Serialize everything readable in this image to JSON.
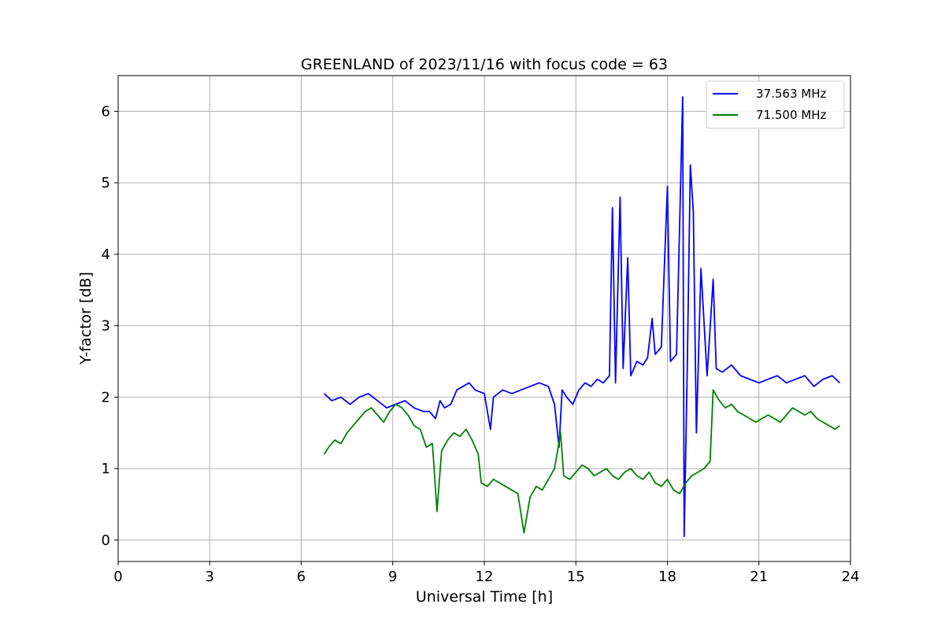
{
  "chart_data": {
    "type": "line",
    "title": "GREENLAND of 2023/11/16 with focus code = 63",
    "xlabel": "Universal Time [h]",
    "ylabel": "Y-factor [dB]",
    "xlim": [
      0,
      24
    ],
    "ylim": [
      -0.3,
      6.5
    ],
    "xticks": [
      0,
      3,
      6,
      9,
      12,
      15,
      18,
      21,
      24
    ],
    "yticks": [
      0,
      1,
      2,
      3,
      4,
      5,
      6
    ],
    "grid": true,
    "legend_position": "top-right",
    "series": [
      {
        "name": "37.563 MHz",
        "color": "#0000ff",
        "points": [
          [
            6.75,
            2.05
          ],
          [
            7.0,
            1.95
          ],
          [
            7.3,
            2.0
          ],
          [
            7.6,
            1.9
          ],
          [
            7.9,
            2.0
          ],
          [
            8.2,
            2.05
          ],
          [
            8.5,
            1.95
          ],
          [
            8.8,
            1.85
          ],
          [
            9.1,
            1.9
          ],
          [
            9.4,
            1.95
          ],
          [
            9.7,
            1.85
          ],
          [
            10.0,
            1.8
          ],
          [
            10.2,
            1.8
          ],
          [
            10.4,
            1.7
          ],
          [
            10.55,
            1.95
          ],
          [
            10.7,
            1.85
          ],
          [
            10.9,
            1.9
          ],
          [
            11.1,
            2.1
          ],
          [
            11.3,
            2.15
          ],
          [
            11.5,
            2.2
          ],
          [
            11.7,
            2.1
          ],
          [
            12.0,
            2.05
          ],
          [
            12.2,
            1.55
          ],
          [
            12.3,
            2.0
          ],
          [
            12.6,
            2.1
          ],
          [
            12.9,
            2.05
          ],
          [
            13.2,
            2.1
          ],
          [
            13.5,
            2.15
          ],
          [
            13.8,
            2.2
          ],
          [
            14.1,
            2.15
          ],
          [
            14.3,
            1.9
          ],
          [
            14.45,
            1.3
          ],
          [
            14.55,
            2.1
          ],
          [
            14.7,
            2.0
          ],
          [
            14.9,
            1.9
          ],
          [
            15.1,
            2.1
          ],
          [
            15.3,
            2.2
          ],
          [
            15.5,
            2.15
          ],
          [
            15.7,
            2.25
          ],
          [
            15.9,
            2.2
          ],
          [
            16.1,
            2.3
          ],
          [
            16.2,
            4.65
          ],
          [
            16.3,
            2.2
          ],
          [
            16.45,
            4.8
          ],
          [
            16.55,
            2.4
          ],
          [
            16.7,
            3.95
          ],
          [
            16.8,
            2.3
          ],
          [
            17.0,
            2.5
          ],
          [
            17.2,
            2.45
          ],
          [
            17.35,
            2.55
          ],
          [
            17.5,
            3.1
          ],
          [
            17.6,
            2.6
          ],
          [
            17.8,
            2.7
          ],
          [
            18.0,
            4.95
          ],
          [
            18.1,
            2.5
          ],
          [
            18.3,
            2.6
          ],
          [
            18.5,
            6.2
          ],
          [
            18.55,
            0.05
          ],
          [
            18.65,
            2.4
          ],
          [
            18.75,
            5.25
          ],
          [
            18.85,
            4.6
          ],
          [
            18.95,
            1.5
          ],
          [
            19.1,
            3.8
          ],
          [
            19.3,
            2.3
          ],
          [
            19.5,
            3.65
          ],
          [
            19.6,
            2.4
          ],
          [
            19.8,
            2.35
          ],
          [
            20.1,
            2.45
          ],
          [
            20.4,
            2.3
          ],
          [
            20.7,
            2.25
          ],
          [
            21.0,
            2.2
          ],
          [
            21.3,
            2.25
          ],
          [
            21.6,
            2.3
          ],
          [
            21.9,
            2.2
          ],
          [
            22.2,
            2.25
          ],
          [
            22.5,
            2.3
          ],
          [
            22.8,
            2.15
          ],
          [
            23.1,
            2.25
          ],
          [
            23.4,
            2.3
          ],
          [
            23.65,
            2.2
          ]
        ]
      },
      {
        "name": "71.500 MHz",
        "color": "#008000",
        "points": [
          [
            6.75,
            1.2
          ],
          [
            6.9,
            1.3
          ],
          [
            7.1,
            1.4
          ],
          [
            7.3,
            1.35
          ],
          [
            7.5,
            1.5
          ],
          [
            7.7,
            1.6
          ],
          [
            7.9,
            1.7
          ],
          [
            8.1,
            1.8
          ],
          [
            8.3,
            1.85
          ],
          [
            8.5,
            1.75
          ],
          [
            8.7,
            1.65
          ],
          [
            8.9,
            1.8
          ],
          [
            9.1,
            1.9
          ],
          [
            9.3,
            1.85
          ],
          [
            9.5,
            1.75
          ],
          [
            9.7,
            1.6
          ],
          [
            9.9,
            1.55
          ],
          [
            10.1,
            1.3
          ],
          [
            10.3,
            1.35
          ],
          [
            10.45,
            0.4
          ],
          [
            10.6,
            1.25
          ],
          [
            10.8,
            1.4
          ],
          [
            11.0,
            1.5
          ],
          [
            11.2,
            1.45
          ],
          [
            11.4,
            1.55
          ],
          [
            11.6,
            1.4
          ],
          [
            11.8,
            1.2
          ],
          [
            11.9,
            0.8
          ],
          [
            12.1,
            0.75
          ],
          [
            12.3,
            0.85
          ],
          [
            12.5,
            0.8
          ],
          [
            12.7,
            0.75
          ],
          [
            12.9,
            0.7
          ],
          [
            13.1,
            0.65
          ],
          [
            13.3,
            0.1
          ],
          [
            13.5,
            0.6
          ],
          [
            13.7,
            0.75
          ],
          [
            13.9,
            0.7
          ],
          [
            14.1,
            0.85
          ],
          [
            14.3,
            1.0
          ],
          [
            14.5,
            1.5
          ],
          [
            14.6,
            0.9
          ],
          [
            14.8,
            0.85
          ],
          [
            15.0,
            0.95
          ],
          [
            15.2,
            1.05
          ],
          [
            15.4,
            1.0
          ],
          [
            15.6,
            0.9
          ],
          [
            15.8,
            0.95
          ],
          [
            16.0,
            1.0
          ],
          [
            16.2,
            0.9
          ],
          [
            16.4,
            0.85
          ],
          [
            16.6,
            0.95
          ],
          [
            16.8,
            1.0
          ],
          [
            17.0,
            0.9
          ],
          [
            17.2,
            0.85
          ],
          [
            17.4,
            0.95
          ],
          [
            17.6,
            0.8
          ],
          [
            17.8,
            0.75
          ],
          [
            18.0,
            0.85
          ],
          [
            18.2,
            0.7
          ],
          [
            18.4,
            0.65
          ],
          [
            18.6,
            0.8
          ],
          [
            18.8,
            0.9
          ],
          [
            19.0,
            0.95
          ],
          [
            19.2,
            1.0
          ],
          [
            19.4,
            1.1
          ],
          [
            19.5,
            2.1
          ],
          [
            19.7,
            1.95
          ],
          [
            19.9,
            1.85
          ],
          [
            20.1,
            1.9
          ],
          [
            20.3,
            1.8
          ],
          [
            20.5,
            1.75
          ],
          [
            20.7,
            1.7
          ],
          [
            20.9,
            1.65
          ],
          [
            21.1,
            1.7
          ],
          [
            21.3,
            1.75
          ],
          [
            21.5,
            1.7
          ],
          [
            21.7,
            1.65
          ],
          [
            21.9,
            1.75
          ],
          [
            22.1,
            1.85
          ],
          [
            22.3,
            1.8
          ],
          [
            22.5,
            1.75
          ],
          [
            22.7,
            1.8
          ],
          [
            22.9,
            1.7
          ],
          [
            23.1,
            1.65
          ],
          [
            23.3,
            1.6
          ],
          [
            23.5,
            1.55
          ],
          [
            23.65,
            1.6
          ]
        ]
      }
    ]
  }
}
